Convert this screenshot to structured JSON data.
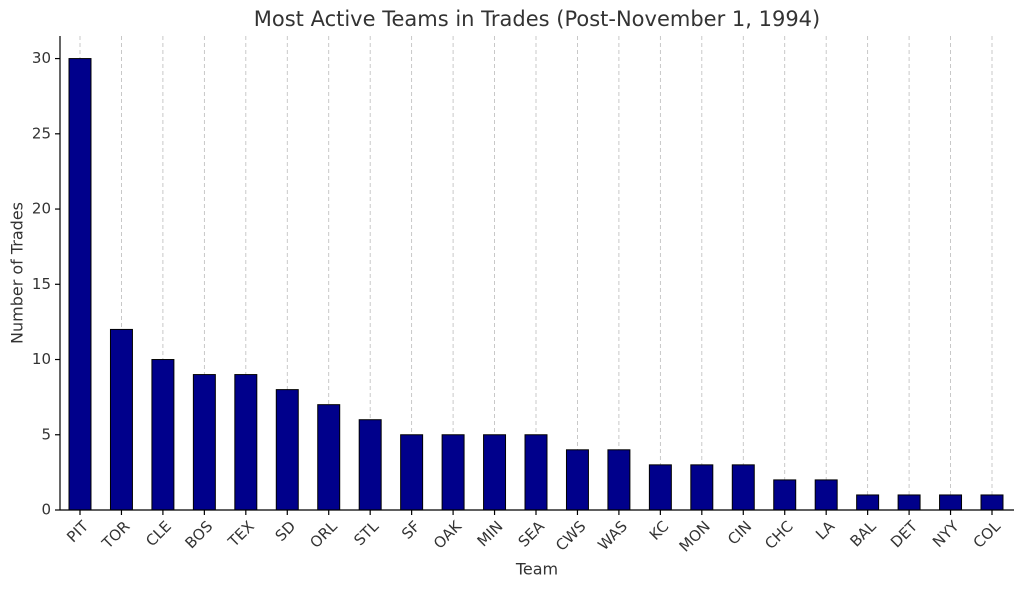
{
  "chart_data": {
    "type": "bar",
    "title": "Most Active Teams in Trades (Post-November 1, 1994)",
    "x_label": "Team",
    "y_label": "Number of Trades",
    "categories": [
      "PIT",
      "TOR",
      "CLE",
      "BOS",
      "TEX",
      "SD",
      "ORL",
      "STL",
      "SF",
      "OAK",
      "MIN",
      "SEA",
      "CWS",
      "WAS",
      "KC",
      "MON",
      "CIN",
      "CHC",
      "LA",
      "BAL",
      "DET",
      "NYY",
      "COL"
    ],
    "values": [
      30,
      12,
      10,
      9,
      9,
      8,
      7,
      6,
      5,
      5,
      5,
      5,
      4,
      4,
      3,
      3,
      3,
      2,
      2,
      1,
      1,
      1,
      1
    ],
    "color": "#00008b",
    "edgecolor": "#000000",
    "ylim": [
      0,
      31.5
    ],
    "yticks": [
      0,
      5,
      10,
      15,
      20,
      25,
      30
    ],
    "grid": true
  }
}
